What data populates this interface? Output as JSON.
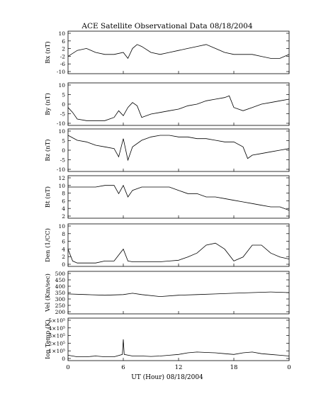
{
  "title": "ACE Satellite Observational Data   08/18/2004",
  "xlabel": "UT (Hour)   08/18/2004",
  "x_ticks": [
    "0",
    "6",
    "12",
    "18",
    "0"
  ],
  "chart_data": [
    {
      "type": "line",
      "ylabel": "Bx (nT)",
      "yticks": [
        "10",
        "6",
        "2",
        "-2",
        "-6",
        "-10"
      ],
      "ylim": [
        -10,
        10
      ],
      "x": [
        0,
        1,
        2,
        3,
        4,
        5,
        6,
        6.5,
        7,
        7.5,
        8,
        9,
        10,
        11,
        12,
        13,
        14,
        15,
        16,
        17,
        18,
        19,
        20,
        21,
        22,
        23,
        24
      ],
      "y": [
        -2,
        1,
        2,
        0,
        -1,
        -1,
        0,
        -3,
        2,
        4,
        3,
        0,
        -1,
        0,
        1,
        2,
        3,
        4,
        2,
        0,
        -1,
        -1,
        -1,
        -2,
        -3,
        -3,
        -1
      ]
    },
    {
      "type": "line",
      "ylabel": "By (nT)",
      "yticks": [
        "10",
        "5",
        "0",
        "-5",
        "-10"
      ],
      "ylim": [
        -12,
        12
      ],
      "x": [
        0,
        0.5,
        1,
        2,
        3,
        4,
        5,
        5.5,
        6,
        6.5,
        7,
        7.5,
        8,
        9,
        10,
        11,
        12,
        13,
        14,
        15,
        16,
        17,
        17.5,
        18,
        19,
        20,
        21,
        22,
        23,
        24
      ],
      "y": [
        -2,
        -5,
        -9,
        -10,
        -10,
        -10,
        -8,
        -4,
        -7,
        -2,
        1,
        -1,
        -8,
        -6,
        -5,
        -4,
        -3,
        -1,
        0,
        2,
        3,
        4,
        5,
        -2,
        -4,
        -2,
        0,
        1,
        2,
        3
      ]
    },
    {
      "type": "line",
      "ylabel": "Bz (nT)",
      "yticks": [
        "10",
        "5",
        "0",
        "-5",
        "-10"
      ],
      "ylim": [
        -12,
        12
      ],
      "x": [
        0,
        1,
        2,
        3,
        4,
        5,
        5.5,
        6,
        6.5,
        7,
        8,
        9,
        10,
        11,
        12,
        13,
        14,
        15,
        16,
        17,
        18,
        19,
        19.5,
        20,
        21,
        22,
        23,
        24
      ],
      "y": [
        9,
        6,
        5,
        3,
        2,
        1,
        -4,
        7,
        -6,
        2,
        6,
        8,
        9,
        9,
        8,
        8,
        7,
        7,
        6,
        5,
        5,
        2,
        -5,
        -3,
        -2,
        -1,
        0,
        1
      ]
    },
    {
      "type": "line",
      "ylabel": "Bt (nT)",
      "yticks": [
        "12",
        "10",
        "8",
        "6",
        "4",
        "2"
      ],
      "ylim": [
        1,
        13
      ],
      "x": [
        0,
        1,
        2,
        3,
        4,
        5,
        5.5,
        6,
        6.5,
        7,
        8,
        9,
        10,
        11,
        12,
        13,
        14,
        15,
        16,
        17,
        18,
        19,
        20,
        21,
        22,
        23,
        24
      ],
      "y": [
        10,
        10,
        10,
        10,
        10.5,
        10.5,
        8,
        10.5,
        7,
        9,
        10,
        10,
        10,
        10,
        9,
        8,
        8,
        7,
        7,
        6.5,
        6,
        5.5,
        5,
        4.5,
        4,
        4,
        3
      ]
    },
    {
      "type": "line",
      "ylabel": "Den (1/CC)",
      "yticks": [
        "10",
        "8",
        "6",
        "4",
        "2",
        "0"
      ],
      "ylim": [
        0,
        10
      ],
      "x": [
        0,
        0.5,
        1,
        2,
        3,
        4,
        5,
        6,
        6.5,
        7,
        8,
        9,
        10,
        11,
        12,
        13,
        14,
        15,
        16,
        17,
        18,
        19,
        20,
        21,
        22,
        23,
        24
      ],
      "y": [
        4,
        1,
        0.5,
        0.5,
        0.5,
        1,
        1,
        4,
        1,
        0.8,
        0.8,
        0.8,
        0.8,
        1,
        1.2,
        2,
        3,
        5,
        5.5,
        4,
        1,
        2,
        5,
        5,
        3,
        2,
        1.5
      ]
    },
    {
      "type": "line",
      "ylabel": "Vel (Km/sec)",
      "yticks": [
        "500",
        "450",
        "400",
        "350",
        "300",
        "250",
        "200"
      ],
      "ylim": [
        200,
        500
      ],
      "x": [
        0,
        2,
        4,
        6,
        7,
        8,
        10,
        12,
        14,
        16,
        18,
        20,
        22,
        24
      ],
      "y": [
        340,
        335,
        330,
        335,
        345,
        335,
        320,
        330,
        335,
        340,
        345,
        350,
        355,
        350
      ]
    },
    {
      "type": "line",
      "ylabel": "Ion Temp (K)",
      "yticks": [
        "5×10⁵",
        "4×10⁵",
        "3×10⁵",
        "2×10⁵",
        "1×10⁵",
        "0"
      ],
      "ylim": [
        0,
        500000
      ],
      "x": [
        0,
        1,
        2,
        3,
        4,
        5,
        5.9,
        6,
        6.1,
        7,
        8,
        9,
        10,
        11,
        12,
        13,
        14,
        15,
        16,
        17,
        18,
        19,
        20,
        21,
        22,
        23,
        24
      ],
      "y": [
        50000,
        30000,
        30000,
        40000,
        30000,
        30000,
        60000,
        250000,
        60000,
        40000,
        40000,
        35000,
        40000,
        50000,
        60000,
        80000,
        90000,
        85000,
        80000,
        70000,
        60000,
        80000,
        90000,
        70000,
        60000,
        50000,
        40000
      ]
    }
  ]
}
